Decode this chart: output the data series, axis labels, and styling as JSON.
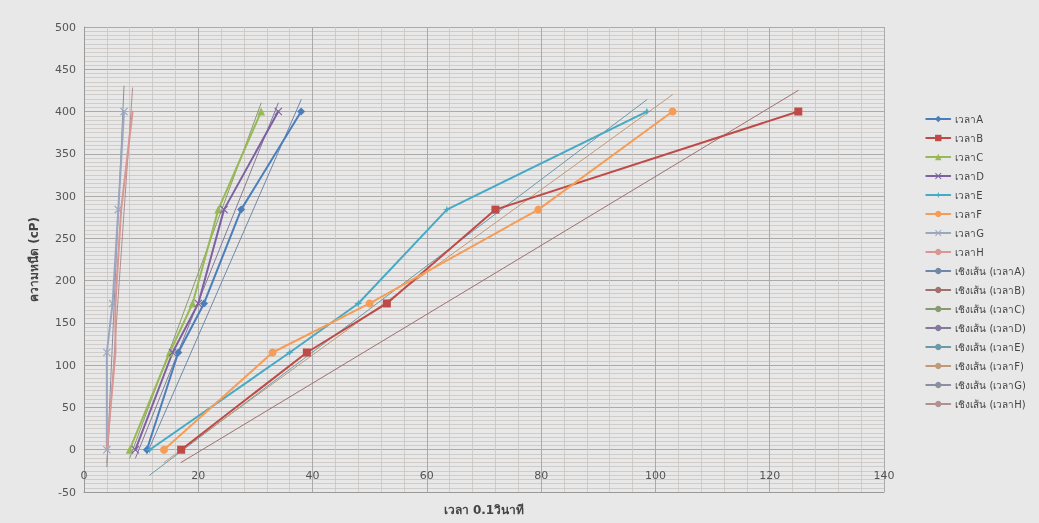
{
  "chart_data": {
    "type": "line",
    "xlabel": "เวลา 0.1วินาที",
    "ylabel": "ความหนืด (cP)",
    "xlim": [
      0,
      140
    ],
    "xticks": [
      0,
      20,
      40,
      60,
      80,
      100,
      120,
      140
    ],
    "ylim": [
      -50,
      500
    ],
    "yticks": [
      -50,
      0,
      50,
      100,
      150,
      200,
      250,
      300,
      350,
      400,
      450,
      500
    ],
    "grid": true,
    "legend": "right",
    "line_style": "solid",
    "series": [
      {
        "name": "เวลาA",
        "color": "#4a7ebb",
        "marker": "diamond",
        "x": [
          11,
          16.5,
          21,
          27.5,
          38
        ],
        "values": [
          0,
          115,
          173,
          284,
          400
        ]
      },
      {
        "name": "เวลาB",
        "color": "#be4b48",
        "marker": "square",
        "x": [
          17,
          39,
          53,
          72,
          125
        ],
        "values": [
          0,
          115,
          173,
          284,
          400
        ]
      },
      {
        "name": "เวลาC",
        "color": "#98b954",
        "marker": "triangle",
        "x": [
          8,
          15,
          19,
          23.5,
          31
        ],
        "values": [
          0,
          115,
          173,
          284,
          400
        ]
      },
      {
        "name": "เวลาD",
        "color": "#7d60a0",
        "marker": "cross",
        "x": [
          9,
          15.5,
          20,
          24.5,
          34
        ],
        "values": [
          0,
          115,
          173,
          284,
          400
        ]
      },
      {
        "name": "เวลาE",
        "color": "#46aac5",
        "marker": "star",
        "x": [
          11.5,
          36,
          48,
          63.5,
          98.5
        ],
        "values": [
          0,
          115,
          173,
          284,
          400
        ]
      },
      {
        "name": "เวลาF",
        "color": "#f59d56",
        "marker": "circle",
        "x": [
          14,
          33,
          50,
          79.5,
          103
        ],
        "values": [
          0,
          115,
          173,
          284,
          400
        ]
      },
      {
        "name": "เวลาG",
        "color": "#9ba7c0",
        "marker": "cross",
        "x": [
          4,
          4,
          5,
          6,
          7
        ],
        "values": [
          0,
          115,
          173,
          284,
          400
        ]
      },
      {
        "name": "เวลาH",
        "color": "#d99694",
        "marker": "none",
        "x": [
          4,
          5.5,
          5.5,
          6.5,
          8.5
        ],
        "values": [
          0,
          115,
          173,
          284,
          400
        ]
      },
      {
        "name": "เชิงเส้น (เวลาA)",
        "color": "#6f88a8",
        "marker": "none",
        "x": [
          11,
          38
        ],
        "values": [
          -5,
          414
        ]
      },
      {
        "name": "เชิงเส้น (เวลาB)",
        "color": "#a07070",
        "marker": "none",
        "x": [
          17,
          125
        ],
        "values": [
          -15,
          425
        ]
      },
      {
        "name": "เชิงเส้น (เวลาC)",
        "color": "#8a9a70",
        "marker": "none",
        "x": [
          8,
          31
        ],
        "values": [
          -10,
          410
        ]
      },
      {
        "name": "เชิงเส้น (เวลาD)",
        "color": "#85789a",
        "marker": "none",
        "x": [
          9,
          34
        ],
        "values": [
          -10,
          410
        ]
      },
      {
        "name": "เชิงเส้น (เวลาE)",
        "color": "#6a9aa8",
        "marker": "none",
        "x": [
          11.5,
          98.5
        ],
        "values": [
          -30,
          414
        ]
      },
      {
        "name": "เชิงเส้น (เวลาF)",
        "color": "#c09a78",
        "marker": "none",
        "x": [
          14,
          103
        ],
        "values": [
          -15,
          420
        ]
      },
      {
        "name": "เชิงเส้น (เวลาG)",
        "color": "#8a90a0",
        "marker": "none",
        "x": [
          4,
          7
        ],
        "values": [
          -20,
          430
        ]
      },
      {
        "name": "เชิงเส้น (เวลาH)",
        "color": "#b09090",
        "marker": "none",
        "x": [
          4,
          8.5
        ],
        "values": [
          -15,
          428
        ]
      }
    ]
  }
}
